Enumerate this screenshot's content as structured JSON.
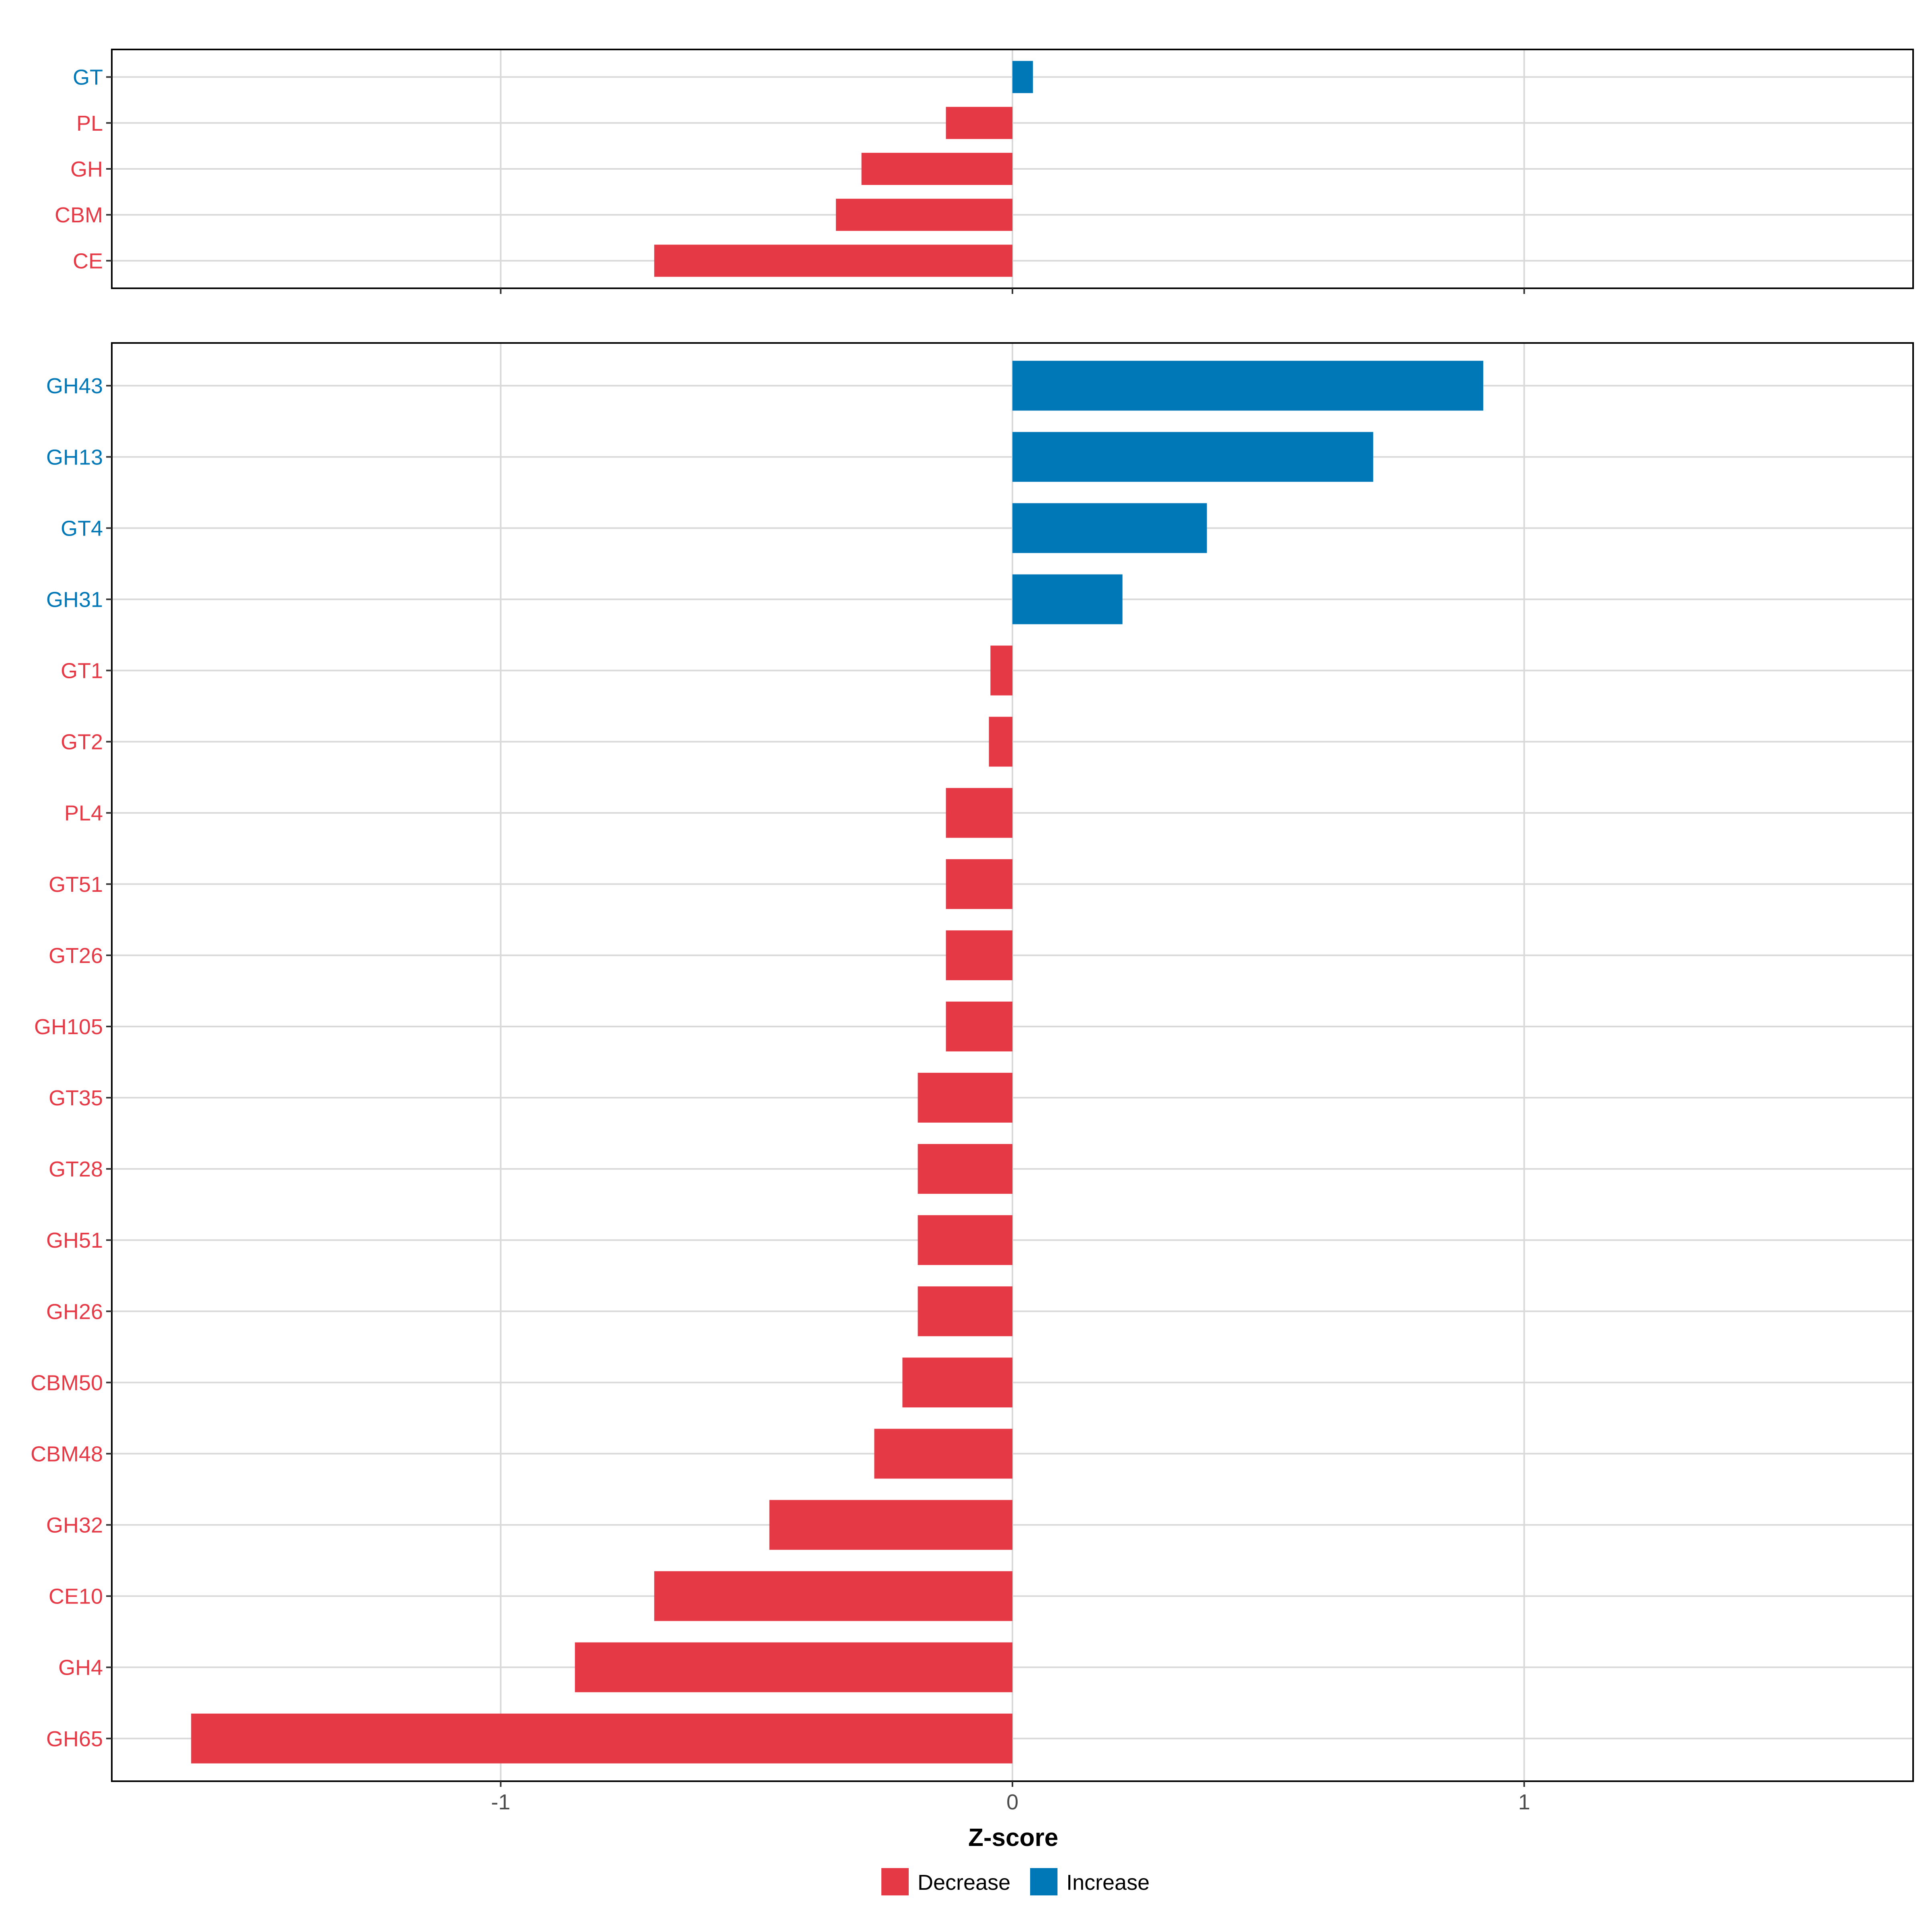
{
  "colors": {
    "decrease": "#E63946",
    "increase": "#0077B6",
    "grid": "#D9D9D9",
    "axis_text": "#4D4D4D",
    "panel_border": "#000000"
  },
  "chart_data": [
    {
      "type": "bar",
      "orientation": "horizontal",
      "panel": "top",
      "categories": [
        "GT",
        "PL",
        "GH",
        "CBM",
        "CE"
      ],
      "values": [
        0.04,
        -0.13,
        -0.295,
        -0.345,
        -0.7
      ],
      "direction": [
        "Increase",
        "Decrease",
        "Decrease",
        "Decrease",
        "Decrease"
      ],
      "xlim": [
        -1.76,
        1.76
      ],
      "x_ticks": [
        -1,
        0,
        1
      ],
      "grid": true
    },
    {
      "type": "bar",
      "orientation": "horizontal",
      "panel": "bottom",
      "categories": [
        "GH43",
        "GH13",
        "GT4",
        "GH31",
        "GT1",
        "GT2",
        "PL4",
        "GT51",
        "GT26",
        "GH105",
        "GT35",
        "GT28",
        "GH51",
        "GH26",
        "CBM50",
        "CBM48",
        "GH32",
        "CE10",
        "GH4",
        "GH65"
      ],
      "values": [
        0.92,
        0.705,
        0.38,
        0.215,
        -0.043,
        -0.046,
        -0.13,
        -0.13,
        -0.13,
        -0.13,
        -0.185,
        -0.185,
        -0.185,
        -0.185,
        -0.215,
        -0.27,
        -0.475,
        -0.7,
        -0.855,
        -1.605
      ],
      "direction": [
        "Increase",
        "Increase",
        "Increase",
        "Increase",
        "Decrease",
        "Decrease",
        "Decrease",
        "Decrease",
        "Decrease",
        "Decrease",
        "Decrease",
        "Decrease",
        "Decrease",
        "Decrease",
        "Decrease",
        "Decrease",
        "Decrease",
        "Decrease",
        "Decrease",
        "Decrease"
      ],
      "xlim": [
        -1.76,
        1.76
      ],
      "x_ticks": [
        -1,
        0,
        1
      ],
      "x_tick_labels": [
        "-1",
        "0",
        "1"
      ],
      "xlabel": "Z-score",
      "grid": true
    }
  ],
  "legend": {
    "placement": "bottom",
    "items": [
      {
        "label": "Decrease",
        "key": "decrease"
      },
      {
        "label": "Increase",
        "key": "increase"
      }
    ]
  }
}
